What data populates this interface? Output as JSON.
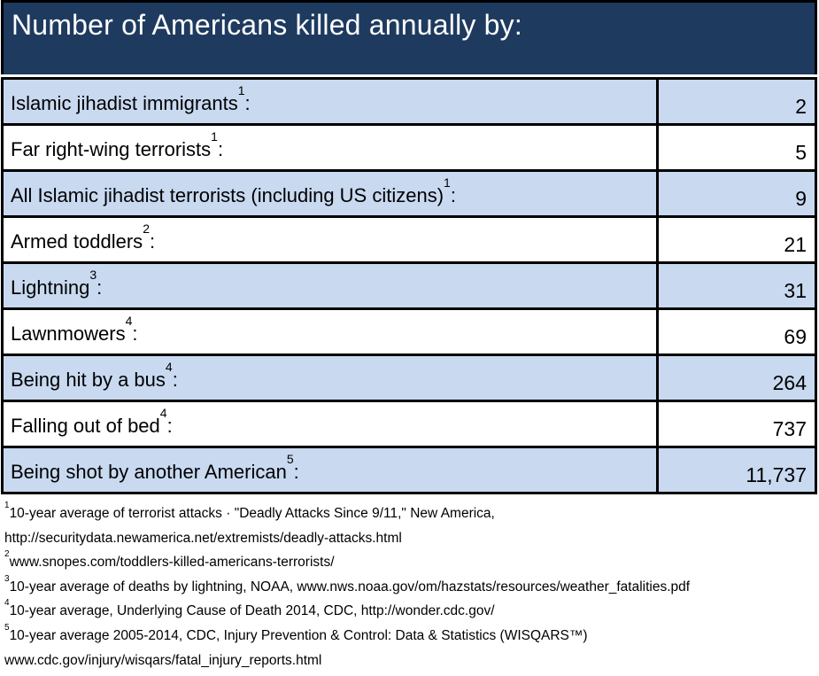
{
  "title": "Number of Americans killed annually by:",
  "colors": {
    "header_bg": "#1e3a5f",
    "row_alt_bg": "#c8d9f0",
    "row_bg": "#ffffff",
    "border": "#000000",
    "title_text": "#ffffff",
    "body_text": "#000000"
  },
  "table": {
    "rows": [
      {
        "label": "Islamic jihadist immigrants",
        "sup": "1",
        "suffix": ":",
        "value": "2"
      },
      {
        "label": "Far right-wing terrorists",
        "sup": "1",
        "suffix": ":",
        "value": "5"
      },
      {
        "label": "All Islamic jihadist terrorists (including US citizens)",
        "sup": "1",
        "suffix": ":",
        "value": "9"
      },
      {
        "label": "Armed toddlers",
        "sup": "2",
        "suffix": ":",
        "value": "21"
      },
      {
        "label": "Lightning",
        "sup": "3",
        "suffix": ":",
        "value": "31"
      },
      {
        "label": "Lawnmowers",
        "sup": "4",
        "suffix": ":",
        "value": "69"
      },
      {
        "label": "Being hit by a bus",
        "sup": "4",
        "suffix": ":",
        "value": "264"
      },
      {
        "label": "Falling out of bed",
        "sup": "4",
        "suffix": ":",
        "value": "737"
      },
      {
        "label": "Being shot by another American",
        "sup": "5",
        "suffix": ":",
        "value": "11,737"
      }
    ]
  },
  "footnotes": [
    {
      "sup": "1",
      "text": "10-year average of terrorist attacks · \"Deadly Attacks Since 9/11,\" New America,"
    },
    {
      "sup": "",
      "text": "http://securitydata.newamerica.net/extremists/deadly-attacks.html"
    },
    {
      "sup": "2",
      "text": "www.snopes.com/toddlers-killed-americans-terrorists/"
    },
    {
      "sup": "3",
      "text": "10-year average of deaths by lightning, NOAA, www.nws.noaa.gov/om/hazstats/resources/weather_fatalities.pdf"
    },
    {
      "sup": "4",
      "text": "10-year average, Underlying Cause of Death 2014, CDC, http://wonder.cdc.gov/"
    },
    {
      "sup": "5",
      "text": "10-year average 2005-2014, CDC, Injury Prevention & Control: Data & Statistics (WISQARS™)"
    },
    {
      "sup": "",
      "text": "www.cdc.gov/injury/wisqars/fatal_injury_reports.html"
    }
  ],
  "chart_data": {
    "type": "table",
    "title": "Number of Americans killed annually by:",
    "categories": [
      "Islamic jihadist immigrants",
      "Far right-wing terrorists",
      "All Islamic jihadist terrorists (including US citizens)",
      "Armed toddlers",
      "Lightning",
      "Lawnmowers",
      "Being hit by a bus",
      "Falling out of bed",
      "Being shot by another American"
    ],
    "values": [
      2,
      5,
      9,
      21,
      31,
      69,
      264,
      737,
      11737
    ],
    "value_labels": [
      "2",
      "5",
      "9",
      "21",
      "31",
      "69",
      "264",
      "737",
      "11,737"
    ],
    "layout_hints": {
      "row_striping": "alternating light-blue / white starting light-blue",
      "values_column": "right-aligned",
      "header": "dark navy bar with white title text"
    }
  }
}
